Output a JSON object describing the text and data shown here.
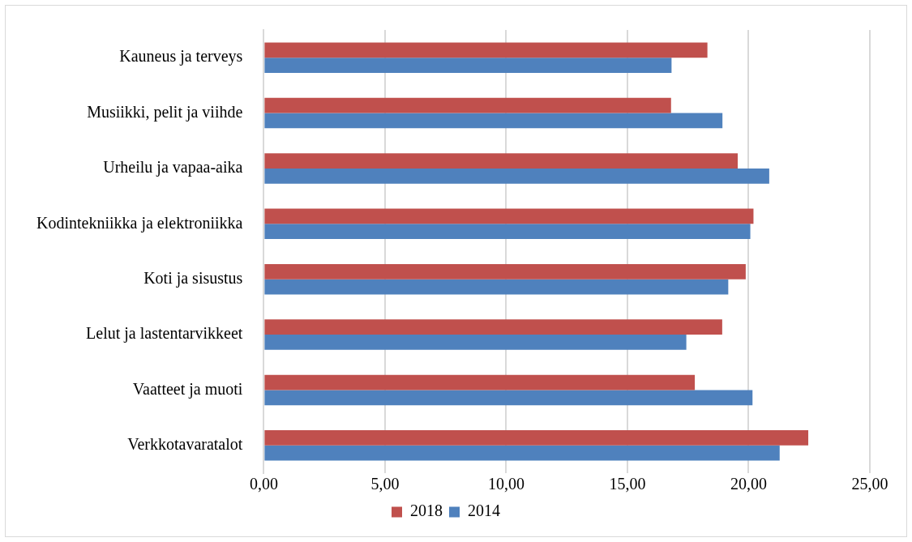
{
  "chart_data": {
    "type": "bar",
    "orientation": "horizontal",
    "categories": [
      "Kauneus ja terveys",
      "Musiikki, pelit ja viihde",
      "Urheilu ja vapaa-aika",
      "Kodintekniikka ja elektroniikka",
      "Koti ja sisustus",
      "Lelut ja lastentarvikkeet",
      "Vaatteet ja muoti",
      "Verkkotavaratalot"
    ],
    "series": [
      {
        "name": "2018",
        "color": "#c0504d",
        "values": [
          18.3,
          16.8,
          19.55,
          20.2,
          19.88,
          18.91,
          17.78,
          22.46
        ]
      },
      {
        "name": "2014",
        "color": "#4f81bd",
        "values": [
          16.82,
          18.92,
          20.85,
          20.07,
          19.16,
          17.43,
          20.16,
          21.28
        ]
      }
    ],
    "xlim": [
      0,
      25
    ],
    "xticks": [
      {
        "value": 0,
        "label": "0,00"
      },
      {
        "value": 5,
        "label": "5,00"
      },
      {
        "value": 10,
        "label": "10,00"
      },
      {
        "value": 15,
        "label": "15,00"
      },
      {
        "value": 20,
        "label": "20,00"
      },
      {
        "value": 25,
        "label": "25,00"
      }
    ],
    "grid": "x",
    "legend": "bottom"
  }
}
